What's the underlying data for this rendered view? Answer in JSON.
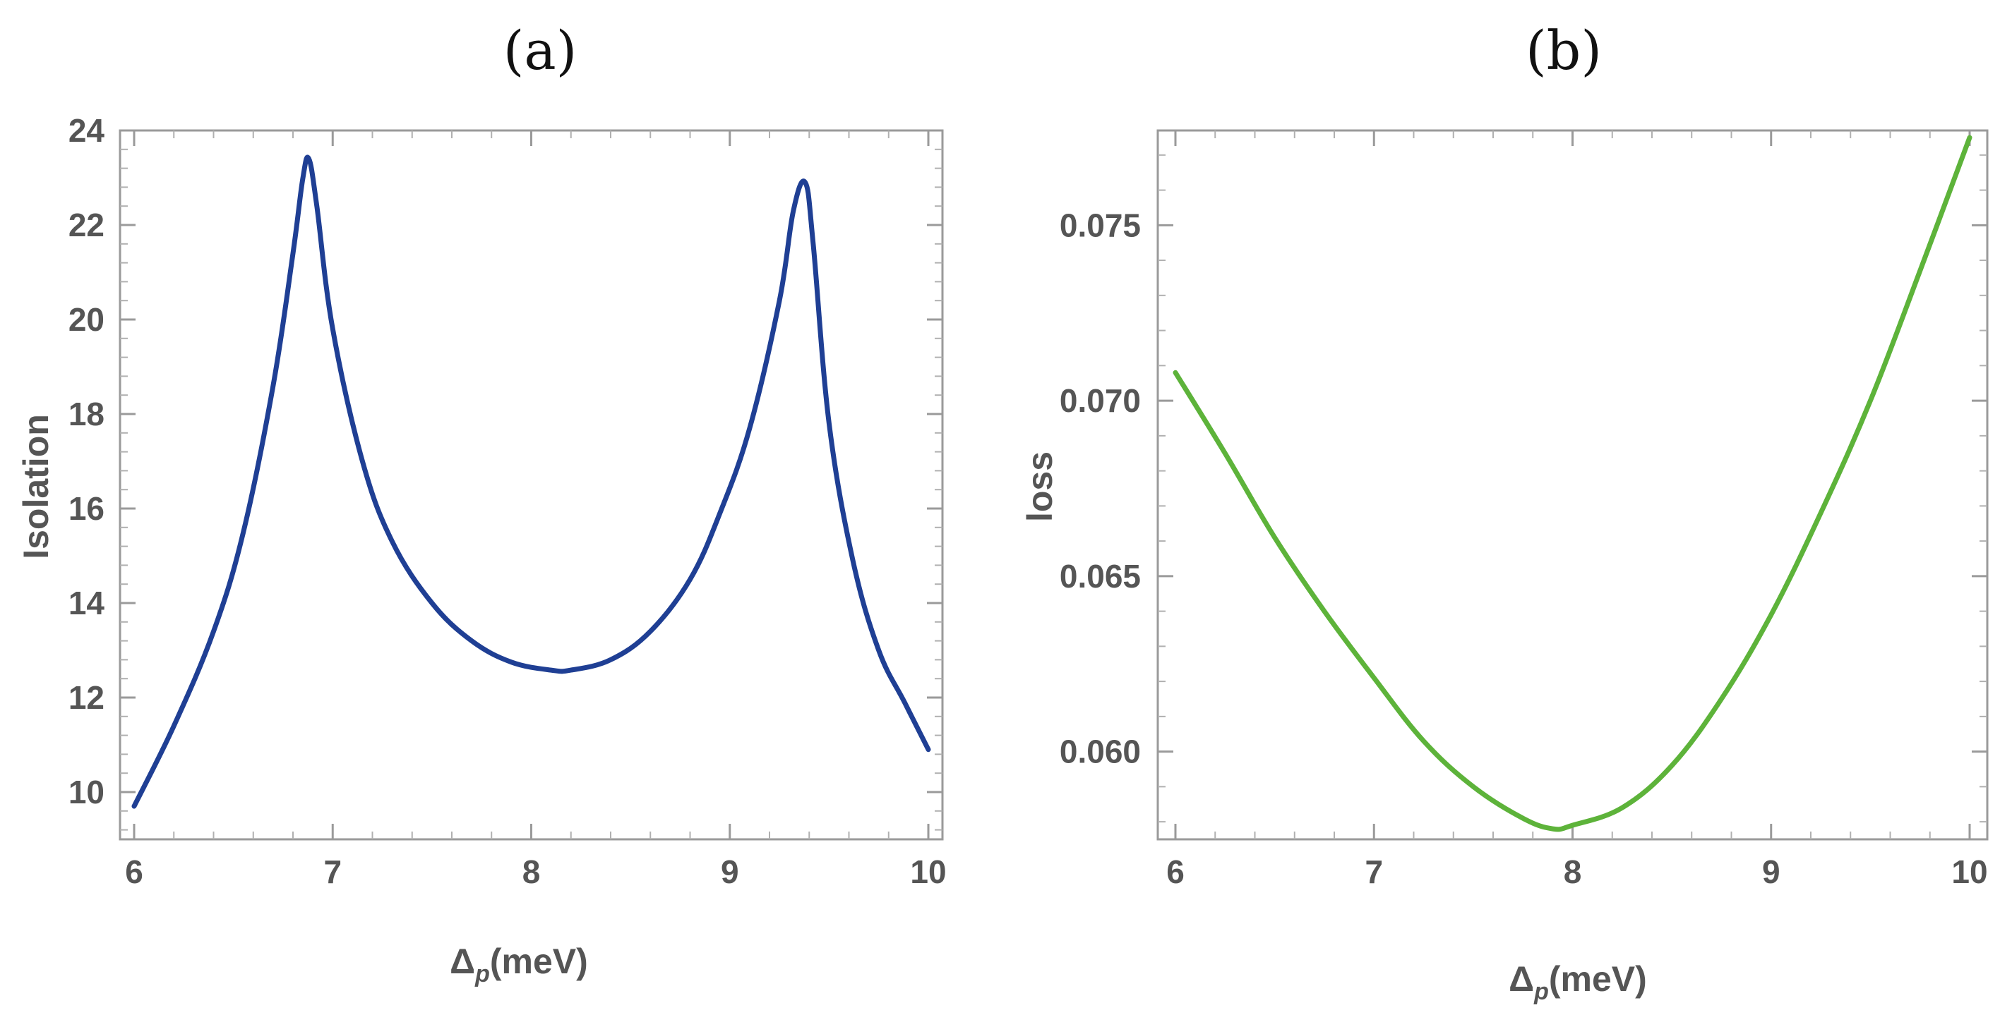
{
  "chart_data": [
    {
      "type": "line",
      "panel_label": "(a)",
      "xlabel": "Δ",
      "xlabel_sub": "p",
      "xlabel_unit": "(meV)",
      "ylabel": "Isolation",
      "xlim": [
        6,
        10
      ],
      "ylim": [
        9,
        24
      ],
      "xticks": [
        6,
        7,
        8,
        9,
        10
      ],
      "yticks": [
        10,
        12,
        14,
        16,
        18,
        20,
        22,
        24
      ],
      "x_tick_labels": [
        "6",
        "7",
        "8",
        "9",
        "10"
      ],
      "y_tick_labels": [
        "10",
        "12",
        "14",
        "16",
        "18",
        "20",
        "22",
        "24"
      ],
      "grid": false,
      "series": [
        {
          "name": "Isolation",
          "color": "#1f3f94",
          "x": [
            6.0,
            6.2,
            6.4,
            6.55,
            6.7,
            6.8,
            6.85,
            6.88,
            6.92,
            7.0,
            7.15,
            7.3,
            7.5,
            7.7,
            7.9,
            8.1,
            8.2,
            8.4,
            8.6,
            8.8,
            8.95,
            9.1,
            9.25,
            9.32,
            9.38,
            9.42,
            9.5,
            9.62,
            9.75,
            9.88,
            10.0
          ],
          "y": [
            9.7,
            11.4,
            13.4,
            15.5,
            18.6,
            21.4,
            23.0,
            23.4,
            22.4,
            19.8,
            17.0,
            15.3,
            14.0,
            13.2,
            12.75,
            12.58,
            12.58,
            12.8,
            13.4,
            14.5,
            15.9,
            17.7,
            20.4,
            22.3,
            22.9,
            21.6,
            17.8,
            14.9,
            13.0,
            11.9,
            10.9
          ]
        }
      ]
    },
    {
      "type": "line",
      "panel_label": "(b)",
      "xlabel": "Δ",
      "xlabel_sub": "p",
      "xlabel_unit": "(meV)",
      "ylabel": "loss",
      "xlim": [
        6,
        10
      ],
      "ylim": [
        0.0575,
        0.0777
      ],
      "xticks": [
        6,
        7,
        8,
        9,
        10
      ],
      "yticks": [
        0.06,
        0.065,
        0.07,
        0.075
      ],
      "x_tick_labels": [
        "6",
        "7",
        "8",
        "9",
        "10"
      ],
      "y_tick_labels": [
        "0.060",
        "0.065",
        "0.070",
        "0.075"
      ],
      "grid": false,
      "series": [
        {
          "name": "loss",
          "color": "#5db33a",
          "x": [
            6.0,
            6.25,
            6.5,
            6.75,
            7.0,
            7.25,
            7.5,
            7.75,
            7.9,
            8.0,
            8.25,
            8.5,
            8.75,
            9.0,
            9.25,
            9.5,
            9.75,
            10.0
          ],
          "y": [
            0.0708,
            0.0685,
            0.0661,
            0.064,
            0.0621,
            0.0603,
            0.059,
            0.0581,
            0.0578,
            0.0579,
            0.0584,
            0.0596,
            0.0615,
            0.0639,
            0.0668,
            0.07,
            0.0737,
            0.0775
          ]
        }
      ]
    }
  ]
}
